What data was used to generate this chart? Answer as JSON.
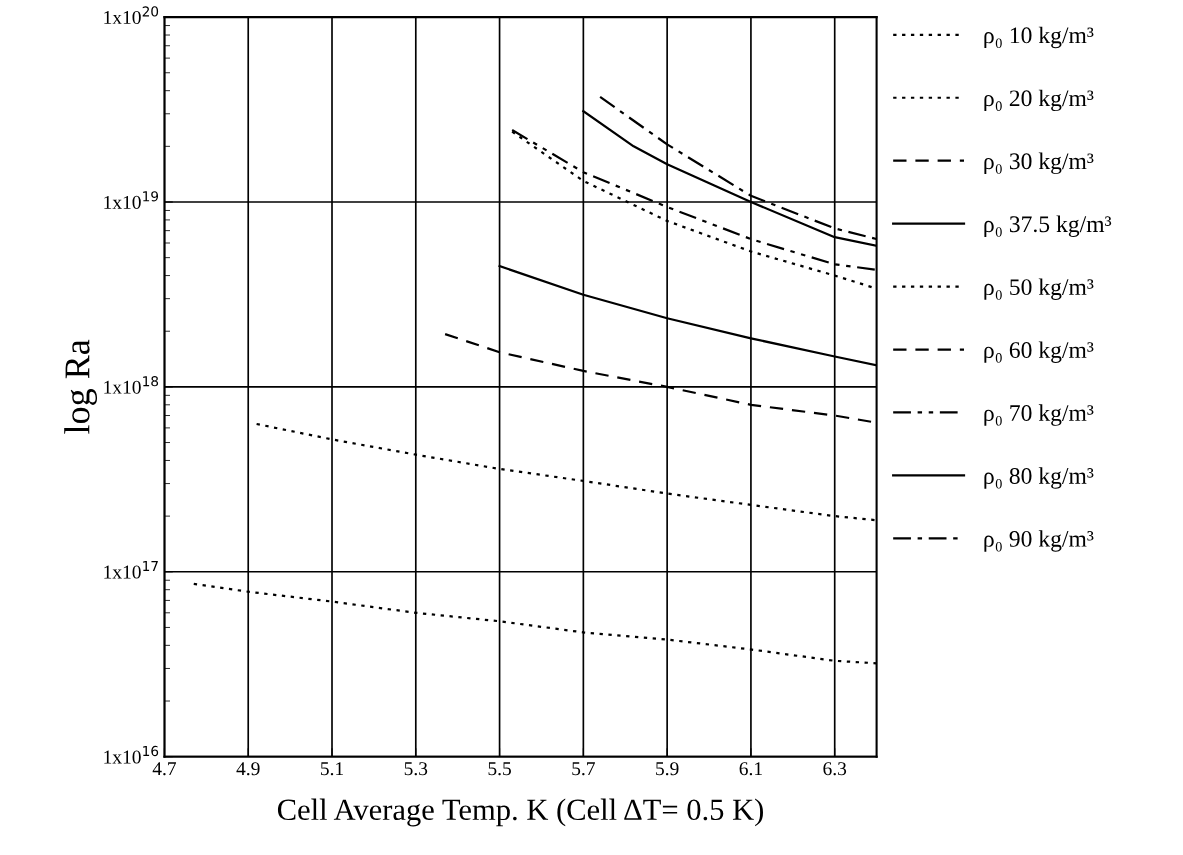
{
  "chart_data": {
    "type": "line",
    "xlabel": "Cell Average Temp. K (Cell ΔT= 0.5 K)",
    "ylabel": "log Ra",
    "xlim": [
      4.7,
      6.4
    ],
    "xticks": [
      4.7,
      4.9,
      5.1,
      5.3,
      5.5,
      5.7,
      5.9,
      6.1,
      6.3
    ],
    "ylim": [
      1e+16,
      1e+20
    ],
    "yticks": [
      {
        "value": 1e+16,
        "label": "1x10$^{16}$"
      },
      {
        "value": 1e+17,
        "label": "1x10$^{17}$"
      },
      {
        "value": 1e+18,
        "label": "1x10$^{18}$"
      },
      {
        "value": 1e+19,
        "label": "1x10$^{19}$"
      },
      {
        "value": 1e+20,
        "label": "1x10$^{20}$"
      }
    ],
    "log": "y",
    "grid": true,
    "legend": "right",
    "marker": "none",
    "series": [
      {
        "name": "ρ₀ 10 kg/m³",
        "color": "#000000",
        "line_style": "dotted",
        "x": [
          4.77,
          4.9,
          5.1,
          5.3,
          5.5,
          5.7,
          5.9,
          6.1,
          6.3,
          6.4
        ],
        "values": [
          8.6e+16,
          7.8e+16,
          6.9e+16,
          6e+16,
          5.4e+16,
          4.7e+16,
          4.3e+16,
          3.8e+16,
          3.3e+16,
          3.2e+16
        ]
      },
      {
        "name": "ρ₀ 20 kg/m³",
        "color": "#000000",
        "line_style": "dotted",
        "x": [
          4.92,
          5.1,
          5.3,
          5.5,
          5.7,
          5.9,
          6.1,
          6.3,
          6.4
        ],
        "values": [
          6.3e+17,
          5.2e+17,
          4.3e+17,
          3.6e+17,
          3.1e+17,
          2.65e+17,
          2.3e+17,
          2e+17,
          1.9e+17
        ]
      },
      {
        "name": "ρ₀ 30 kg/m³",
        "color": "#000000",
        "line_style": "dashed",
        "x": [
          5.37,
          5.5,
          5.7,
          5.9,
          6.1,
          6.3,
          6.4
        ],
        "values": [
          1.93e+18,
          1.54e+18,
          1.22e+18,
          1e+18,
          8e+17,
          7e+17,
          6.4e+17
        ]
      },
      {
        "name": "ρ₀ 37.5 kg/m³",
        "color": "#000000",
        "line_style": "solid",
        "x": [
          5.5,
          5.7,
          5.9,
          6.1,
          6.3,
          6.4
        ],
        "values": [
          4.5e+18,
          3.15e+18,
          2.35e+18,
          1.83e+18,
          1.46e+18,
          1.31e+18
        ]
      },
      {
        "name": "ρ₀ 50 kg/m³",
        "color": "#000000",
        "line_style": "dotted",
        "x": [
          5.53,
          5.7,
          5.9,
          6.1,
          6.3,
          6.4
        ],
        "values": [
          2.4e+19,
          1.3e+19,
          7.9e+18,
          5.4e+18,
          4e+18,
          3.4e+18
        ]
      },
      {
        "name": "ρ₀ 60 kg/m³",
        "color": "#000000",
        "line_style": "dashed"
      },
      {
        "name": "ρ₀ 70 kg/m³",
        "color": "#000000",
        "line_style": "dashdotdot",
        "x": [
          5.53,
          5.7,
          5.9,
          6.1,
          6.3,
          6.4
        ],
        "values": [
          2.45e+19,
          1.45e+19,
          9.4e+18,
          6.3e+18,
          4.6e+18,
          4.3e+18
        ]
      },
      {
        "name": "ρ₀ 80 kg/m³",
        "color": "#000000",
        "line_style": "solid",
        "x": [
          5.7,
          5.82,
          5.9,
          6.1,
          6.3,
          6.4
        ],
        "values": [
          3.1e+19,
          2e+19,
          1.6e+19,
          1e+19,
          6.45e+18,
          5.8e+18
        ]
      },
      {
        "name": "ρ₀ 90 kg/m³",
        "color": "#000000",
        "line_style": "dashdot",
        "x": [
          5.74,
          5.9,
          6.1,
          6.3,
          6.4
        ],
        "values": [
          3.7e+19,
          2.05e+19,
          1.08e+19,
          7.2e+18,
          6.3e+18
        ]
      }
    ]
  }
}
